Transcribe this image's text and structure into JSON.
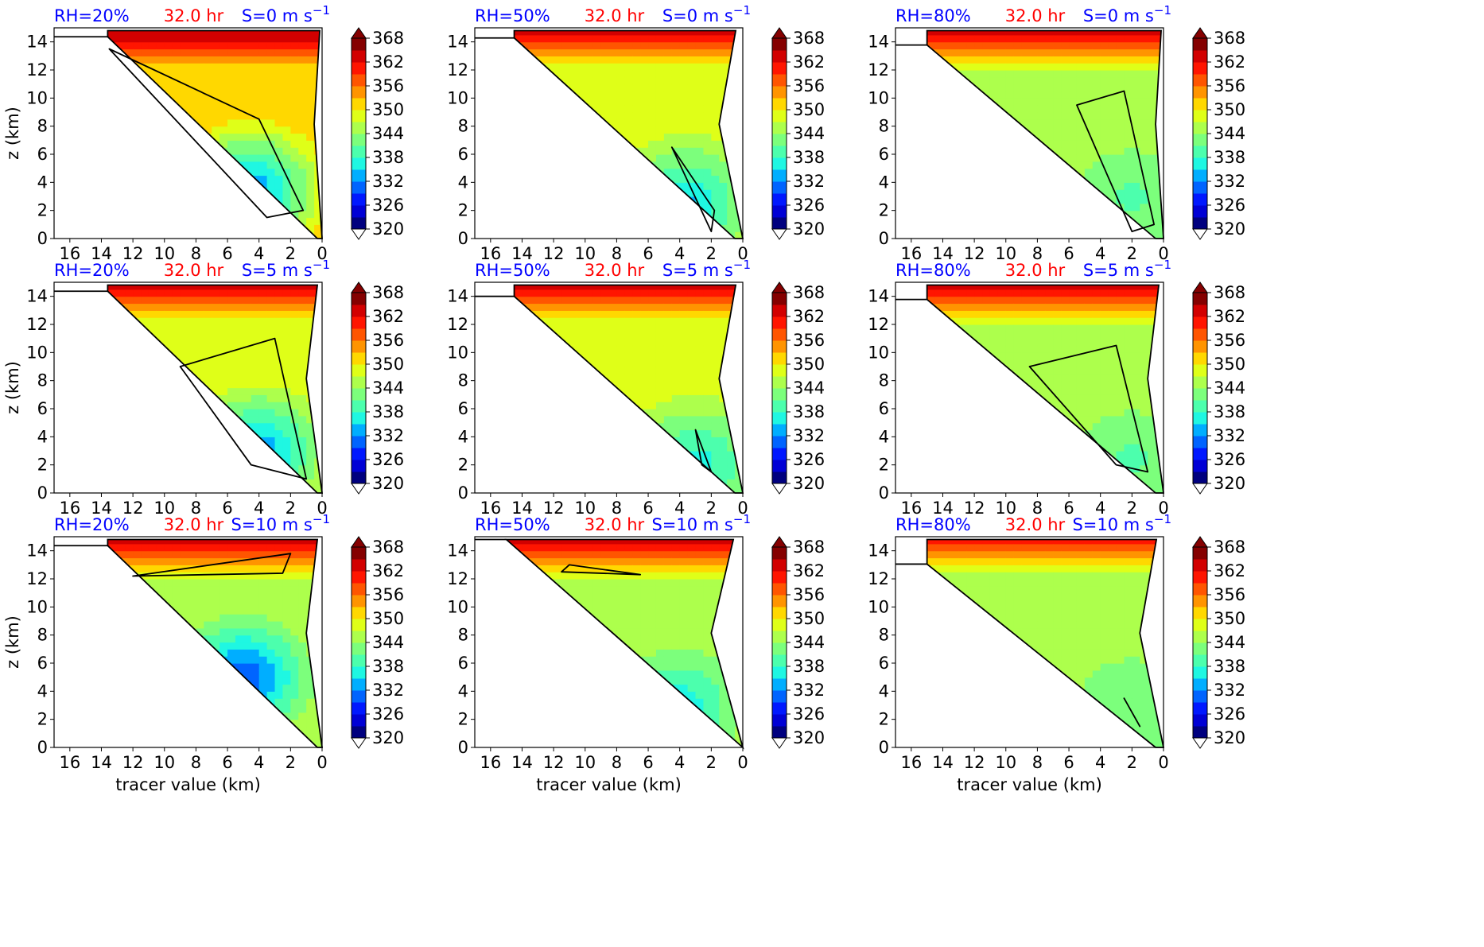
{
  "figure": {
    "colorbar_levels": [
      320,
      323,
      326,
      329,
      332,
      335,
      338,
      341,
      344,
      347,
      350,
      353,
      356,
      359,
      362,
      365,
      368
    ],
    "colorbar_ticks": [
      "320",
      "326",
      "332",
      "338",
      "344",
      "350",
      "356",
      "362",
      "368"
    ],
    "colormap": [
      "#00007f",
      "#0000d5",
      "#0018ff",
      "#0064ff",
      "#00aeff",
      "#1ff7e2",
      "#4cffad",
      "#7cff7c",
      "#adff4c",
      "#dfff18",
      "#ffd800",
      "#ff9400",
      "#ff5500",
      "#ff1500",
      "#d20000",
      "#850000"
    ],
    "contour_color": "#000000",
    "x_ticks": [
      "16",
      "14",
      "12",
      "10",
      "8",
      "6",
      "4",
      "2",
      "0"
    ],
    "y_ticks": [
      "0",
      "2",
      "4",
      "6",
      "8",
      "10",
      "12",
      "14"
    ],
    "xlabel": "tracer value (km)",
    "ylabel": "z (km)",
    "title_colors": {
      "rh": "#0000ff",
      "time": "#ff0000",
      "shear": "#0000ff"
    }
  },
  "chart_data": [
    {
      "type": "heatmap",
      "row": 0,
      "col": 0,
      "title_rh": "RH=20%",
      "title_time": "32.0 hr",
      "title_shear_prefix": "S=0 m s",
      "title_shear_exp": "−1",
      "xlim": [
        17,
        0
      ],
      "ylim": [
        0,
        15
      ],
      "color_range": [
        320,
        368
      ],
      "env": {
        "top": 14.8,
        "bottom_x": 0.3,
        "slope_km_per_km": 1.08,
        "top_x": 13.6,
        "right_x": 0.5
      },
      "value_field": {
        "core_value": 330,
        "core_x": 4.5,
        "core_z": 3.5,
        "edge_value": 350,
        "top_value": 366
      },
      "contours": [
        {
          "label": "outer",
          "points": [
            [
              13.5,
              13.5
            ],
            [
              4.0,
              8.5
            ],
            [
              1.2,
              2.0
            ],
            [
              3.5,
              1.5
            ]
          ]
        }
      ]
    },
    {
      "type": "heatmap",
      "row": 0,
      "col": 1,
      "title_rh": "RH=50%",
      "title_time": "32.0 hr",
      "title_shear_prefix": "S=0 m s",
      "title_shear_exp": "−1",
      "xlim": [
        17,
        0
      ],
      "ylim": [
        0,
        15
      ],
      "color_range": [
        320,
        368
      ],
      "env": {
        "top": 14.8,
        "bottom_x": 0.5,
        "slope_km_per_km": 1.02,
        "top_x": 14.5,
        "right_x": 1.5
      },
      "value_field": {
        "core_value": 334,
        "core_x": 3.5,
        "core_z": 2.5,
        "edge_value": 347,
        "top_value": 365
      },
      "contours": [
        {
          "label": "outer",
          "points": [
            [
              4.5,
              6.5
            ],
            [
              1.8,
              2.0
            ],
            [
              2.0,
              0.5
            ]
          ]
        }
      ]
    },
    {
      "type": "heatmap",
      "row": 0,
      "col": 2,
      "title_rh": "RH=80%",
      "title_time": "32.0 hr",
      "title_shear_prefix": "S=0 m s",
      "title_shear_exp": "−1",
      "xlim": [
        17,
        0
      ],
      "ylim": [
        0,
        15
      ],
      "color_range": [
        320,
        368
      ],
      "env": {
        "top": 14.8,
        "bottom_x": 0.5,
        "slope_km_per_km": 0.95,
        "top_x": 15.0,
        "right_x": 0.5
      },
      "value_field": {
        "core_value": 340,
        "core_x": 2.0,
        "core_z": 3.0,
        "edge_value": 346,
        "top_value": 364
      },
      "contours": [
        {
          "label": "outer",
          "points": [
            [
              5.5,
              9.5
            ],
            [
              2.5,
              10.5
            ],
            [
              0.6,
              1.0
            ],
            [
              2.0,
              0.5
            ]
          ]
        }
      ]
    },
    {
      "type": "heatmap",
      "row": 1,
      "col": 0,
      "title_rh": "RH=20%",
      "title_time": "32.0 hr",
      "title_shear_prefix": "S=5 m s",
      "title_shear_exp": "−1",
      "xlim": [
        17,
        0
      ],
      "ylim": [
        0,
        15
      ],
      "color_range": [
        320,
        368
      ],
      "env": {
        "top": 14.8,
        "bottom_x": 0.3,
        "slope_km_per_km": 1.08,
        "top_x": 13.6,
        "right_x": 1.0
      },
      "value_field": {
        "core_value": 331,
        "core_x": 4.0,
        "core_z": 3.0,
        "edge_value": 348,
        "top_value": 366
      },
      "contours": [
        {
          "label": "outer",
          "points": [
            [
              9.0,
              9.0
            ],
            [
              3.0,
              11.0
            ],
            [
              1.0,
              1.0
            ],
            [
              4.5,
              2.0
            ]
          ]
        }
      ]
    },
    {
      "type": "heatmap",
      "row": 1,
      "col": 1,
      "title_rh": "RH=50%",
      "title_time": "32.0 hr",
      "title_shear_prefix": "S=5 m s",
      "title_shear_exp": "−1",
      "xlim": [
        17,
        0
      ],
      "ylim": [
        0,
        15
      ],
      "color_range": [
        320,
        368
      ],
      "env": {
        "top": 14.8,
        "bottom_x": 0.5,
        "slope_km_per_km": 1.0,
        "top_x": 14.5,
        "right_x": 1.5
      },
      "value_field": {
        "core_value": 335,
        "core_x": 3.0,
        "core_z": 2.0,
        "edge_value": 347,
        "top_value": 365
      },
      "contours": [
        {
          "label": "inner",
          "points": [
            [
              3.0,
              4.5
            ],
            [
              2.0,
              1.5
            ],
            [
              2.6,
              2.0
            ]
          ]
        }
      ]
    },
    {
      "type": "heatmap",
      "row": 1,
      "col": 2,
      "title_rh": "RH=80%",
      "title_time": "32.0 hr",
      "title_shear_prefix": "S=5 m s",
      "title_shear_exp": "−1",
      "xlim": [
        17,
        0
      ],
      "ylim": [
        0,
        15
      ],
      "color_range": [
        320,
        368
      ],
      "env": {
        "top": 14.8,
        "bottom_x": 0.5,
        "slope_km_per_km": 0.95,
        "top_x": 15.0,
        "right_x": 1.0
      },
      "value_field": {
        "core_value": 340,
        "core_x": 2.0,
        "core_z": 2.5,
        "edge_value": 346,
        "top_value": 364
      },
      "contours": [
        {
          "label": "outer",
          "points": [
            [
              8.5,
              9.0
            ],
            [
              3.0,
              10.5
            ],
            [
              1.0,
              1.5
            ],
            [
              3.0,
              2.0
            ]
          ]
        }
      ]
    },
    {
      "type": "heatmap",
      "row": 2,
      "col": 0,
      "title_rh": "RH=20%",
      "title_time": "32.0 hr",
      "title_shear_prefix": "S=10 m s",
      "title_shear_exp": "−1",
      "xlim": [
        17,
        0
      ],
      "ylim": [
        0,
        15
      ],
      "color_range": [
        320,
        368
      ],
      "env": {
        "top": 14.8,
        "bottom_x": 0.3,
        "slope_km_per_km": 1.08,
        "top_x": 13.6,
        "right_x": 1.0
      },
      "value_field": {
        "core_value": 328,
        "core_x": 5.0,
        "core_z": 5.0,
        "edge_value": 346,
        "top_value": 366
      },
      "contours": [
        {
          "label": "upper",
          "points": [
            [
              12.0,
              12.2
            ],
            [
              2.5,
              12.4
            ],
            [
              2.0,
              13.8
            ]
          ]
        }
      ]
    },
    {
      "type": "heatmap",
      "row": 2,
      "col": 1,
      "title_rh": "RH=50%",
      "title_time": "32.0 hr",
      "title_shear_prefix": "S=10 m s",
      "title_shear_exp": "−1",
      "xlim": [
        17,
        0
      ],
      "ylim": [
        0,
        15
      ],
      "color_range": [
        320,
        368
      ],
      "env": {
        "top": 14.8,
        "bottom_x": 0.0,
        "slope_km_per_km": 1.0,
        "top_x": 15.0,
        "right_x": 2.0
      },
      "value_field": {
        "core_value": 335,
        "core_x": 4.0,
        "core_z": 3.0,
        "edge_value": 346,
        "top_value": 365
      },
      "contours": [
        {
          "label": "upper",
          "points": [
            [
              11.5,
              12.5
            ],
            [
              6.5,
              12.3
            ],
            [
              11.0,
              13.0
            ]
          ]
        }
      ]
    },
    {
      "type": "heatmap",
      "row": 2,
      "col": 2,
      "title_rh": "RH=80%",
      "title_time": "32.0 hr",
      "title_shear_prefix": "S=10 m s",
      "title_shear_exp": "−1",
      "xlim": [
        17,
        0
      ],
      "ylim": [
        0,
        15
      ],
      "color_range": [
        320,
        368
      ],
      "env": {
        "top": 14.8,
        "bottom_x": 0.5,
        "slope_km_per_km": 0.9,
        "top_x": 15.0,
        "right_x": 1.5
      },
      "value_field": {
        "core_value": 342,
        "core_x": 2.0,
        "core_z": 3.0,
        "edge_value": 345,
        "top_value": 362
      },
      "contours": [
        {
          "label": "inner",
          "points": [
            [
              2.5,
              3.5
            ],
            [
              1.5,
              1.5
            ],
            [
              2.0,
              2.5
            ]
          ]
        }
      ]
    }
  ]
}
